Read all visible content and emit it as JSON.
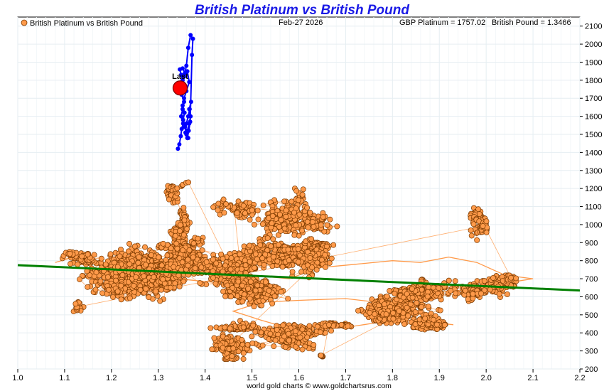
{
  "chart_data": {
    "type": "scatter",
    "title": "British Platinum vs British Pound",
    "legend": {
      "label": "British Platinum vs British Pound",
      "placement": "top-left"
    },
    "date_label": "Feb-27  2026",
    "gbp_platinum_label": "GBP Platinum = 1757.02",
    "british_pound_label": "British Pound = 1.3466",
    "footer": "world gold charts © www.goldchartsrus.com",
    "last_label": "Last",
    "xlim": [
      1.0,
      2.2
    ],
    "ylim": [
      200,
      2150
    ],
    "x_ticks": [
      "1.0",
      "1.1",
      "1.2",
      "1.3",
      "1.4",
      "1.5",
      "1.6",
      "1.7",
      "1.8",
      "1.9",
      "2.0",
      "2.1",
      "2.2"
    ],
    "y_ticks": [
      "200",
      "300",
      "400",
      "500",
      "600",
      "700",
      "800",
      "900",
      "1000",
      "1100",
      "1200",
      "1300",
      "1400",
      "1500",
      "1600",
      "1700",
      "1800",
      "1900",
      "2000",
      "2100"
    ],
    "grid": true,
    "trend_line": {
      "x": [
        1.0,
        2.2
      ],
      "y": [
        775,
        635
      ],
      "color": "#008000"
    },
    "last_point": {
      "x": 1.3466,
      "y": 1757.02,
      "color": "#ff0000"
    },
    "recent_series": {
      "color": "#0000ff",
      "points": [
        [
          1.342,
          1420
        ],
        [
          1.345,
          1445
        ],
        [
          1.348,
          1490
        ],
        [
          1.35,
          1530
        ],
        [
          1.353,
          1560
        ],
        [
          1.349,
          1600
        ],
        [
          1.352,
          1640
        ],
        [
          1.355,
          1680
        ],
        [
          1.35,
          1720
        ],
        [
          1.347,
          1760
        ],
        [
          1.352,
          1800
        ],
        [
          1.349,
          1830
        ],
        [
          1.346,
          1860
        ],
        [
          1.352,
          1865
        ],
        [
          1.357,
          1840
        ],
        [
          1.362,
          1850
        ],
        [
          1.366,
          1790
        ],
        [
          1.36,
          1740
        ],
        [
          1.355,
          1700
        ],
        [
          1.352,
          1660
        ],
        [
          1.356,
          1620
        ],
        [
          1.353,
          1580
        ],
        [
          1.357,
          1540
        ],
        [
          1.36,
          1500
        ],
        [
          1.364,
          1480
        ],
        [
          1.362,
          1520
        ],
        [
          1.366,
          1560
        ],
        [
          1.369,
          1600
        ],
        [
          1.366,
          1640
        ],
        [
          1.37,
          1680
        ],
        [
          1.367,
          1640
        ],
        [
          1.364,
          1600
        ],
        [
          1.36,
          1560
        ],
        [
          1.358,
          1510
        ],
        [
          1.362,
          1480
        ],
        [
          1.365,
          1520
        ],
        [
          1.368,
          1570
        ],
        [
          1.372,
          1940
        ],
        [
          1.374,
          2030
        ],
        [
          1.369,
          2050
        ],
        [
          1.364,
          1980
        ],
        [
          1.36,
          1880
        ],
        [
          1.355,
          1820
        ],
        [
          1.352,
          1760
        ],
        [
          1.3466,
          1757
        ]
      ]
    },
    "history_series": {
      "color": "#ff9a4a",
      "marker_edge": "#7a3a00",
      "clusters": [
        {
          "cx": 1.24,
          "cy": 730,
          "sx": 0.055,
          "sy": 75,
          "n": 820
        },
        {
          "cx": 1.14,
          "cy": 805,
          "sx": 0.04,
          "sy": 25,
          "n": 70
        },
        {
          "cx": 1.31,
          "cy": 700,
          "sx": 0.03,
          "sy": 60,
          "n": 260
        },
        {
          "cx": 1.35,
          "cy": 820,
          "sx": 0.035,
          "sy": 70,
          "n": 200
        },
        {
          "cx": 1.35,
          "cy": 1000,
          "sx": 0.012,
          "sy": 60,
          "n": 90
        },
        {
          "cx": 1.33,
          "cy": 1195,
          "sx": 0.015,
          "sy": 35,
          "n": 55
        },
        {
          "cx": 1.44,
          "cy": 760,
          "sx": 0.05,
          "sy": 60,
          "n": 300
        },
        {
          "cx": 1.5,
          "cy": 650,
          "sx": 0.05,
          "sy": 55,
          "n": 260
        },
        {
          "cx": 1.46,
          "cy": 1080,
          "sx": 0.03,
          "sy": 40,
          "n": 90
        },
        {
          "cx": 1.57,
          "cy": 1040,
          "sx": 0.045,
          "sy": 70,
          "n": 330
        },
        {
          "cx": 1.56,
          "cy": 850,
          "sx": 0.05,
          "sy": 55,
          "n": 230
        },
        {
          "cx": 1.64,
          "cy": 860,
          "sx": 0.035,
          "sy": 30,
          "n": 120
        },
        {
          "cx": 1.62,
          "cy": 760,
          "sx": 0.04,
          "sy": 50,
          "n": 110
        },
        {
          "cx": 1.45,
          "cy": 330,
          "sx": 0.025,
          "sy": 40,
          "n": 170
        },
        {
          "cx": 1.58,
          "cy": 380,
          "sx": 0.05,
          "sy": 45,
          "n": 240
        },
        {
          "cx": 1.45,
          "cy": 430,
          "sx": 0.04,
          "sy": 15,
          "n": 60
        },
        {
          "cx": 1.68,
          "cy": 440,
          "sx": 0.04,
          "sy": 15,
          "n": 50
        },
        {
          "cx": 1.65,
          "cy": 270,
          "sx": 0.006,
          "sy": 8,
          "n": 10
        },
        {
          "cx": 1.8,
          "cy": 520,
          "sx": 0.045,
          "sy": 45,
          "n": 340
        },
        {
          "cx": 1.88,
          "cy": 450,
          "sx": 0.04,
          "sy": 20,
          "n": 130
        },
        {
          "cx": 1.84,
          "cy": 630,
          "sx": 0.045,
          "sy": 35,
          "n": 190
        },
        {
          "cx": 1.98,
          "cy": 630,
          "sx": 0.04,
          "sy": 35,
          "n": 140
        },
        {
          "cx": 2.05,
          "cy": 700,
          "sx": 0.03,
          "sy": 20,
          "n": 60
        },
        {
          "cx": 1.99,
          "cy": 1030,
          "sx": 0.015,
          "sy": 60,
          "n": 90
        },
        {
          "cx": 1.13,
          "cy": 560,
          "sx": 0.015,
          "sy": 35,
          "n": 15
        }
      ],
      "path_points": [
        [
          1.08,
          790
        ],
        [
          1.12,
          820
        ],
        [
          1.18,
          780
        ],
        [
          1.22,
          820
        ],
        [
          1.28,
          760
        ],
        [
          1.34,
          700
        ],
        [
          1.42,
          680
        ],
        [
          1.5,
          720
        ],
        [
          1.58,
          700
        ],
        [
          1.64,
          760
        ],
        [
          1.72,
          780
        ],
        [
          1.8,
          800
        ],
        [
          1.86,
          790
        ],
        [
          1.92,
          820
        ],
        [
          1.98,
          790
        ],
        [
          2.04,
          720
        ],
        [
          2.1,
          700
        ],
        [
          2.05,
          680
        ],
        [
          1.96,
          640
        ],
        [
          1.88,
          620
        ],
        [
          1.8,
          560
        ],
        [
          1.7,
          590
        ],
        [
          1.6,
          580
        ],
        [
          1.52,
          570
        ],
        [
          1.46,
          520
        ],
        [
          1.52,
          470
        ],
        [
          1.6,
          410
        ],
        [
          1.7,
          430
        ],
        [
          1.8,
          470
        ],
        [
          1.88,
          460
        ],
        [
          1.93,
          445
        ]
      ]
    }
  }
}
